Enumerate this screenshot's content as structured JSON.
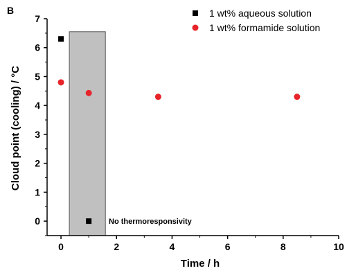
{
  "panel_label": "B",
  "chart_data": {
    "type": "scatter",
    "xlabel": "Time / h",
    "ylabel": "Cloud point (cooling) / °C",
    "xlim": [
      -0.5,
      10
    ],
    "ylim": [
      -0.5,
      7
    ],
    "xticks": [
      0,
      2,
      4,
      6,
      8,
      10
    ],
    "yticks": [
      0,
      1,
      2,
      3,
      4,
      5,
      6,
      7
    ],
    "series": [
      {
        "name": "1 wt% aqueous solution",
        "marker": "square",
        "color": "#000000",
        "points": [
          {
            "x": 0,
            "y": 6.3
          },
          {
            "x": 1,
            "y": 0
          }
        ]
      },
      {
        "name": "1 wt% formamide solution",
        "marker": "circle",
        "color": "#e8242b",
        "points": [
          {
            "x": 0,
            "y": 4.8
          },
          {
            "x": 1,
            "y": 4.43
          },
          {
            "x": 3.5,
            "y": 4.3
          },
          {
            "x": 8.5,
            "y": 4.3
          }
        ]
      }
    ],
    "shaded_region": {
      "x": [
        0.3,
        1.6
      ],
      "y": [
        -0.5,
        6.55
      ],
      "color": "#c0c0c0"
    },
    "annotation": "No thermoresponsivity",
    "legend_position": "top-right"
  }
}
